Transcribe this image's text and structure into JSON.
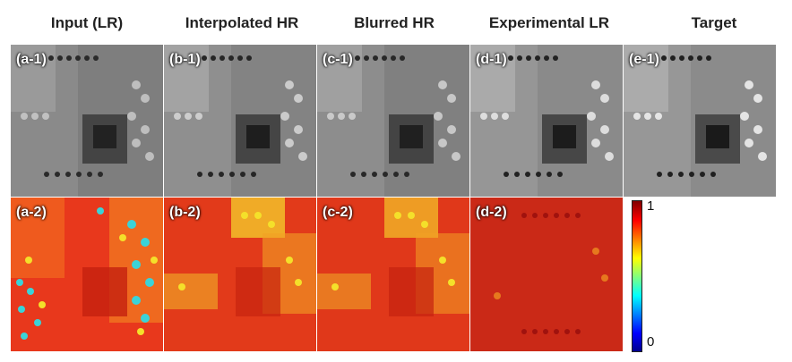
{
  "columns": [
    "Input (LR)",
    "Interpolated HR",
    "Blurred HR",
    "Experimental LR",
    "Target"
  ],
  "row1_labels": [
    "(a-1)",
    "(b-1)",
    "(c-1)",
    "(d-1)",
    "(e-1)"
  ],
  "row2_labels": [
    "(a-2)",
    "(b-2)",
    "(c-2)",
    "(d-2)"
  ],
  "colorbar": {
    "max_label": "1",
    "min_label": "0"
  },
  "colors": {
    "gray_background": "#8a8a8a",
    "map_red": "#e8381c",
    "map_yellow": "#f4e02a",
    "map_cyan": "#3ad3d8",
    "map_darkred": "#a0120e"
  }
}
